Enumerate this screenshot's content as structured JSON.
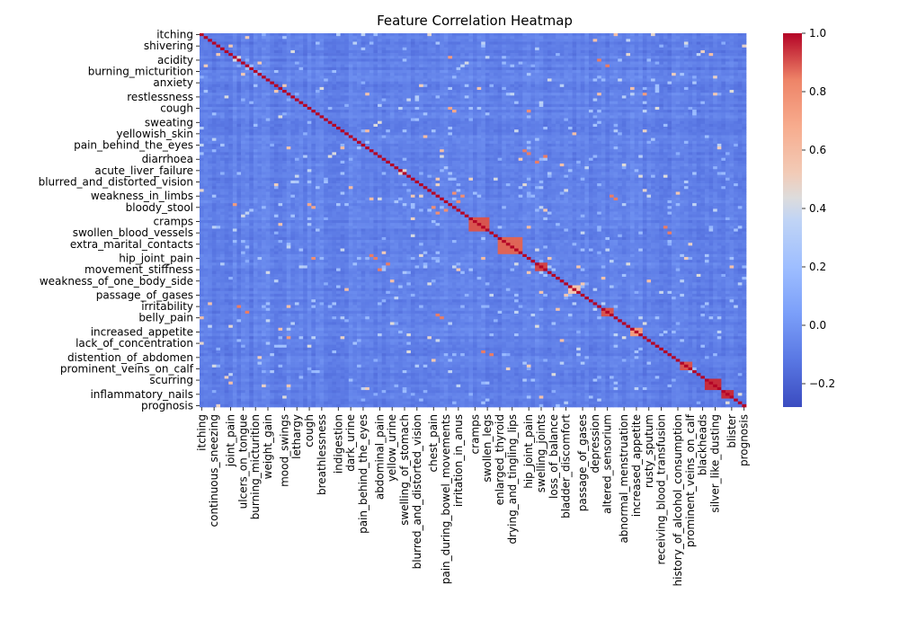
{
  "chart_data": {
    "type": "heatmap",
    "title": "Feature Correlation Heatmap",
    "colormap": "coolwarm",
    "n_features": 132,
    "y_tick_labels": [
      "itching",
      "shivering",
      "acidity",
      "burning_micturition",
      "anxiety",
      "restlessness",
      "cough",
      "sweating",
      "yellowish_skin",
      "pain_behind_the_eyes",
      "diarrhoea",
      "acute_liver_failure",
      "blurred_and_distorted_vision",
      "weakness_in_limbs",
      "bloody_stool",
      "cramps",
      "swollen_blood_vessels",
      "extra_marital_contacts",
      "hip_joint_pain",
      "movement_stiffness",
      "weakness_of_one_body_side",
      "passage_of_gases",
      "irritability",
      "belly_pain",
      "increased_appetite",
      "lack_of_concentration",
      "distention_of_abdomen",
      "prominent_veins_on_calf",
      "scurring",
      "inflammatory_nails",
      "prognosis"
    ],
    "x_tick_labels": [
      "itching",
      "continuous_sneezing",
      "joint_pain",
      "ulcers_on_tongue",
      "burning_micturition",
      "weight_gain",
      "mood_swings",
      "lethargy",
      "cough",
      "breathlessness",
      "indigestion",
      "dark_urine",
      "pain_behind_the_eyes",
      "abdominal_pain",
      "yellow_urine",
      "swelling_of_stomach",
      "blurred_and_distorted_vision",
      "chest_pain",
      "pain_during_bowel_movements",
      "irritation_in_anus",
      "cramps",
      "swollen_legs",
      "enlarged_thyroid",
      "drying_and_tingling_lips",
      "hip_joint_pain",
      "swelling_joints",
      "loss_of_balance",
      "bladder_discomfort",
      "passage_of_gases",
      "depression",
      "altered_sensorium",
      "abnormal_menstruation",
      "increased_appetite",
      "rusty_sputum",
      "receiving_blood_transfusion",
      "history_of_alcohol_consumption",
      "prominent_veins_on_calf",
      "blackheads",
      "silver_like_dusting",
      "blister",
      "prognosis"
    ],
    "colorbar": {
      "min": -0.28,
      "max": 1.0,
      "ticks": [
        -0.2,
        0.0,
        0.2,
        0.4,
        0.6,
        0.8,
        1.0
      ]
    },
    "diagonal_value": 1.0,
    "blocks": [
      {
        "start": 65,
        "size": 5,
        "value": 0.9
      },
      {
        "start": 72,
        "size": 6,
        "value": 0.88
      },
      {
        "start": 81,
        "size": 3,
        "value": 0.92
      },
      {
        "start": 89,
        "size": 3,
        "value": 0.55
      },
      {
        "start": 97,
        "size": 3,
        "value": 0.9
      },
      {
        "start": 116,
        "size": 3,
        "value": 0.9
      },
      {
        "start": 122,
        "size": 4,
        "value": 0.95
      },
      {
        "start": 126,
        "size": 3,
        "value": 0.95
      },
      {
        "start": 104,
        "size": 3,
        "value": 0.75
      }
    ],
    "hot_spots": [
      {
        "r": 41,
        "c": 78,
        "value": 0.85
      },
      {
        "r": 42,
        "c": 79,
        "value": 0.85
      },
      {
        "r": 45,
        "c": 81,
        "value": 0.85
      },
      {
        "r": 43,
        "c": 83,
        "value": 0.85
      },
      {
        "r": 56,
        "c": 61,
        "value": 0.8
      },
      {
        "r": 57,
        "c": 63,
        "value": 0.8
      },
      {
        "r": 59,
        "c": 62,
        "value": 0.8
      },
      {
        "r": 96,
        "c": 9,
        "value": 0.85
      },
      {
        "r": 98,
        "c": 11,
        "value": 0.85
      },
      {
        "r": 8,
        "c": 60,
        "value": 0.75
      },
      {
        "r": 26,
        "c": 60,
        "value": 0.7
      },
      {
        "r": 27,
        "c": 61,
        "value": 0.7
      },
      {
        "r": 99,
        "c": 57,
        "value": 0.85
      },
      {
        "r": 100,
        "c": 58,
        "value": 0.85
      },
      {
        "r": 112,
        "c": 68,
        "value": 0.85
      },
      {
        "r": 113,
        "c": 70,
        "value": 0.85
      },
      {
        "r": 21,
        "c": 107,
        "value": 0.75
      },
      {
        "r": 79,
        "c": 27,
        "value": 0.8
      },
      {
        "r": 36,
        "c": 54,
        "value": 0.6
      },
      {
        "r": 34,
        "c": 40,
        "value": 0.6
      }
    ],
    "seed": 7
  }
}
